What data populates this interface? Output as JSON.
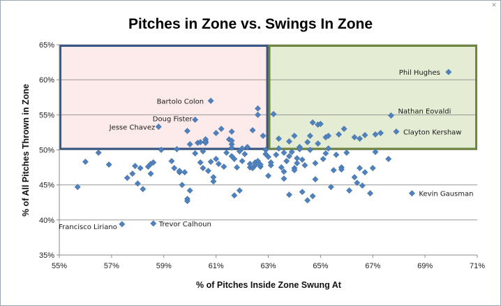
{
  "chart_data": {
    "type": "scatter",
    "title": "Pitches in Zone vs. Swings In Zone",
    "xlabel": "% of Pitches Inside Zone Swung At",
    "ylabel": "% of All Pitches Thrown in Zone",
    "xlim": [
      55,
      71
    ],
    "ylim": [
      35,
      65
    ],
    "x_ticks": [
      "55%",
      "57%",
      "59%",
      "61%",
      "63%",
      "65%",
      "67%",
      "69%",
      "71%"
    ],
    "y_ticks": [
      "35%",
      "40%",
      "45%",
      "50%",
      "55%",
      "60%",
      "65%"
    ],
    "grid": "horizontal",
    "marker_color": "#4f81bd",
    "regions": [
      {
        "x": [
          55,
          63
        ],
        "y": [
          50,
          65
        ],
        "fill": "#fdeaea",
        "border": "#3a5685"
      },
      {
        "x": [
          63,
          71
        ],
        "y": [
          50,
          65
        ],
        "fill": "#e4ecd3",
        "border": "#6e8540"
      }
    ],
    "labeled_points": [
      {
        "label": "Phil Hughes",
        "x": 69.9,
        "y": 61.1
      },
      {
        "label": "Bartolo Colon",
        "x": 60.8,
        "y": 57.0
      },
      {
        "label": "Nathan Eovaldi",
        "x": 67.7,
        "y": 54.9
      },
      {
        "label": "Doug Fister",
        "x": 60.2,
        "y": 54.3
      },
      {
        "label": "Jesse Chavez",
        "x": 58.8,
        "y": 53.3
      },
      {
        "label": "Clayton Kershaw",
        "x": 67.9,
        "y": 52.6
      },
      {
        "label": "Kevin Gausman",
        "x": 68.5,
        "y": 43.8
      },
      {
        "label": "Francisco Liriano",
        "x": 57.4,
        "y": 39.4
      },
      {
        "label": "Trevor Calhoun",
        "x": 58.6,
        "y": 39.5
      }
    ],
    "points": [
      [
        55.7,
        44.7
      ],
      [
        56.0,
        48.3
      ],
      [
        56.5,
        49.6
      ],
      [
        56.9,
        47.9
      ],
      [
        57.6,
        46.0
      ],
      [
        57.8,
        46.6
      ],
      [
        57.9,
        47.7
      ],
      [
        58.0,
        45.2
      ],
      [
        58.1,
        47.4
      ],
      [
        58.2,
        44.4
      ],
      [
        58.4,
        47.6
      ],
      [
        58.5,
        48.0
      ],
      [
        58.5,
        46.6
      ],
      [
        58.6,
        48.2
      ],
      [
        58.9,
        50.0
      ],
      [
        59.3,
        48.4
      ],
      [
        59.4,
        47.4
      ],
      [
        59.5,
        50.1
      ],
      [
        59.6,
        46.8
      ],
      [
        59.6,
        47.0
      ],
      [
        59.7,
        45.0
      ],
      [
        59.8,
        46.8
      ],
      [
        59.9,
        43.0
      ],
      [
        59.9,
        42.7
      ],
      [
        59.9,
        52.7
      ],
      [
        60.0,
        44.2
      ],
      [
        60.0,
        50.8
      ],
      [
        60.2,
        49.5
      ],
      [
        60.3,
        51.0
      ],
      [
        60.4,
        48.2
      ],
      [
        60.4,
        51.1
      ],
      [
        60.5,
        47.4
      ],
      [
        60.5,
        49.8
      ],
      [
        60.6,
        51.2
      ],
      [
        60.6,
        51.5
      ],
      [
        60.6,
        51.0
      ],
      [
        60.7,
        47.0
      ],
      [
        60.8,
        48.3
      ],
      [
        60.9,
        45.5
      ],
      [
        60.9,
        46.1
      ],
      [
        61.0,
        52.4
      ],
      [
        61.0,
        48.7
      ],
      [
        61.1,
        48.0
      ],
      [
        61.2,
        53.0
      ],
      [
        61.3,
        47.6
      ],
      [
        61.4,
        49.6
      ],
      [
        61.5,
        51.5
      ],
      [
        61.6,
        50.8
      ],
      [
        61.6,
        51.3
      ],
      [
        61.6,
        50.3
      ],
      [
        61.6,
        52.6
      ],
      [
        61.6,
        49.1
      ],
      [
        61.7,
        48.7
      ],
      [
        61.7,
        43.5
      ],
      [
        61.8,
        47.5
      ],
      [
        61.9,
        49.8
      ],
      [
        61.9,
        44.2
      ],
      [
        62.0,
        50.2
      ],
      [
        62.0,
        48.4
      ],
      [
        62.1,
        49.4
      ],
      [
        62.2,
        50.4
      ],
      [
        62.3,
        47.5
      ],
      [
        62.3,
        48.0
      ],
      [
        62.4,
        47.4
      ],
      [
        62.4,
        52.8
      ],
      [
        62.5,
        48.2
      ],
      [
        62.5,
        47.8
      ],
      [
        62.6,
        48.4
      ],
      [
        62.6,
        55.0
      ],
      [
        62.6,
        55.9
      ],
      [
        62.7,
        47.6
      ],
      [
        62.7,
        47.9
      ],
      [
        62.8,
        52.0
      ],
      [
        62.9,
        50.0
      ],
      [
        62.9,
        49.4
      ],
      [
        63.0,
        46.3
      ],
      [
        63.0,
        49.0
      ],
      [
        63.1,
        47.8
      ],
      [
        63.1,
        48.2
      ],
      [
        63.2,
        55.1
      ],
      [
        63.3,
        49.3
      ],
      [
        63.4,
        50.2
      ],
      [
        63.4,
        51.6
      ],
      [
        63.5,
        47.5
      ],
      [
        63.6,
        46.9
      ],
      [
        63.6,
        49.6
      ],
      [
        63.6,
        45.9
      ],
      [
        63.7,
        48.4
      ],
      [
        63.8,
        49.1
      ],
      [
        63.8,
        51.2
      ],
      [
        63.8,
        43.6
      ],
      [
        63.9,
        49.7
      ],
      [
        64.0,
        47.4
      ],
      [
        64.0,
        47.1
      ],
      [
        64.0,
        52.0
      ],
      [
        64.1,
        48.1
      ],
      [
        64.1,
        48.8
      ],
      [
        64.2,
        50.4
      ],
      [
        64.2,
        50.1
      ],
      [
        64.3,
        48.6
      ],
      [
        64.3,
        44.0
      ],
      [
        64.4,
        47.8
      ],
      [
        64.5,
        42.8
      ],
      [
        64.5,
        51.1
      ],
      [
        64.6,
        50.0
      ],
      [
        64.6,
        52.0
      ],
      [
        64.7,
        53.9
      ],
      [
        64.7,
        43.4
      ],
      [
        64.8,
        48.1
      ],
      [
        64.8,
        45.8
      ],
      [
        64.9,
        53.6
      ],
      [
        64.9,
        50.9
      ],
      [
        65.0,
        53.7
      ],
      [
        65.1,
        48.7
      ],
      [
        65.2,
        51.8
      ],
      [
        65.2,
        49.5
      ],
      [
        65.3,
        52.0
      ],
      [
        65.3,
        50.2
      ],
      [
        65.4,
        44.7
      ],
      [
        65.5,
        47.1
      ],
      [
        65.6,
        49.3
      ],
      [
        65.7,
        52.2
      ],
      [
        65.8,
        47.5
      ],
      [
        65.8,
        47.2
      ],
      [
        65.9,
        53.0
      ],
      [
        66.0,
        49.6
      ],
      [
        66.1,
        44.2
      ],
      [
        66.3,
        46.1
      ],
      [
        66.3,
        51.8
      ],
      [
        66.4,
        45.3
      ],
      [
        66.5,
        47.4
      ],
      [
        66.5,
        51.6
      ],
      [
        66.6,
        44.9
      ],
      [
        66.7,
        52.1
      ],
      [
        66.7,
        46.8
      ],
      [
        66.9,
        43.8
      ],
      [
        67.0,
        47.4
      ],
      [
        67.1,
        49.7
      ],
      [
        67.1,
        52.2
      ],
      [
        67.3,
        52.4
      ],
      [
        67.6,
        48.7
      ]
    ]
  }
}
